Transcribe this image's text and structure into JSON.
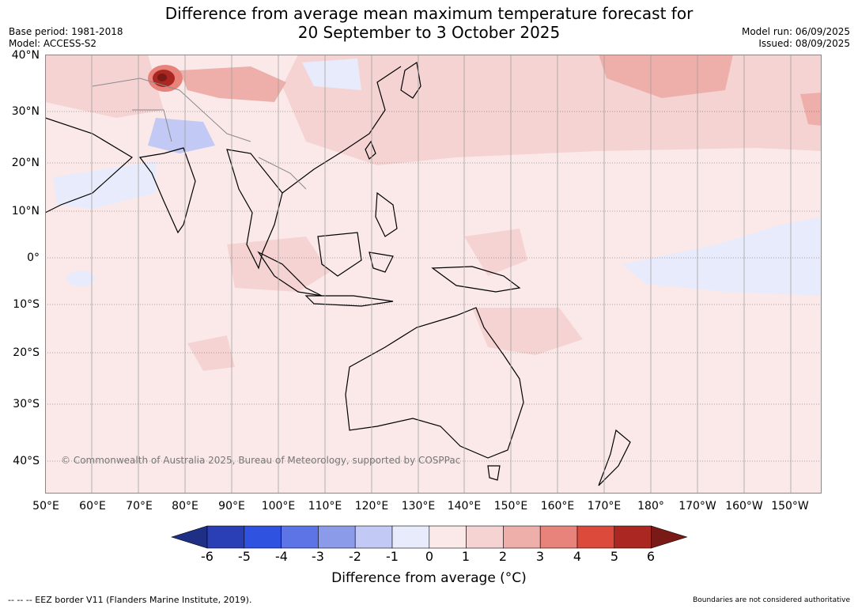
{
  "title_line1": "Difference from average mean maximum temperature forecast for",
  "title_line2": "20 September to 3 October 2025",
  "base_period": "Base period: 1981-2018",
  "model": "Model: ACCESS-S2",
  "model_run": "Model run: 06/09/2025",
  "issued": "Issued: 08/09/2025",
  "copyright": "© Commonwealth of Australia 2025, Bureau of Meteorology, supported by COSPPac",
  "lon_labels": [
    "50°E",
    "60°E",
    "70°E",
    "80°E",
    "90°E",
    "100°E",
    "110°E",
    "120°E",
    "130°E",
    "140°E",
    "150°E",
    "160°E",
    "170°E",
    "180°",
    "170°W",
    "160°W",
    "150°W"
  ],
  "lat_labels": [
    "40°N",
    "30°N",
    "20°N",
    "10°N",
    "0°",
    "10°S",
    "20°S",
    "30°S",
    "40°S"
  ],
  "colorbar": {
    "ticks": [
      "-6",
      "-5",
      "-4",
      "-3",
      "-2",
      "-1",
      "0",
      "1",
      "2",
      "3",
      "4",
      "5",
      "6"
    ],
    "colors": [
      "#1f2f85",
      "#2a3eb5",
      "#2f52e0",
      "#5d74e6",
      "#8b9be9",
      "#c2c9f4",
      "#e8ebfb",
      "#fbe9e9",
      "#f5d3d3",
      "#eeaeaa",
      "#e8837b",
      "#dc4a3c",
      "#ab2822",
      "#7a1a16"
    ],
    "label": "Difference from average (°C)"
  },
  "footer_left": "--  --  -- EEZ border V11 (Flanders Marine Institute, 2019).",
  "footer_right": "Boundaries are not considered authoritative"
}
